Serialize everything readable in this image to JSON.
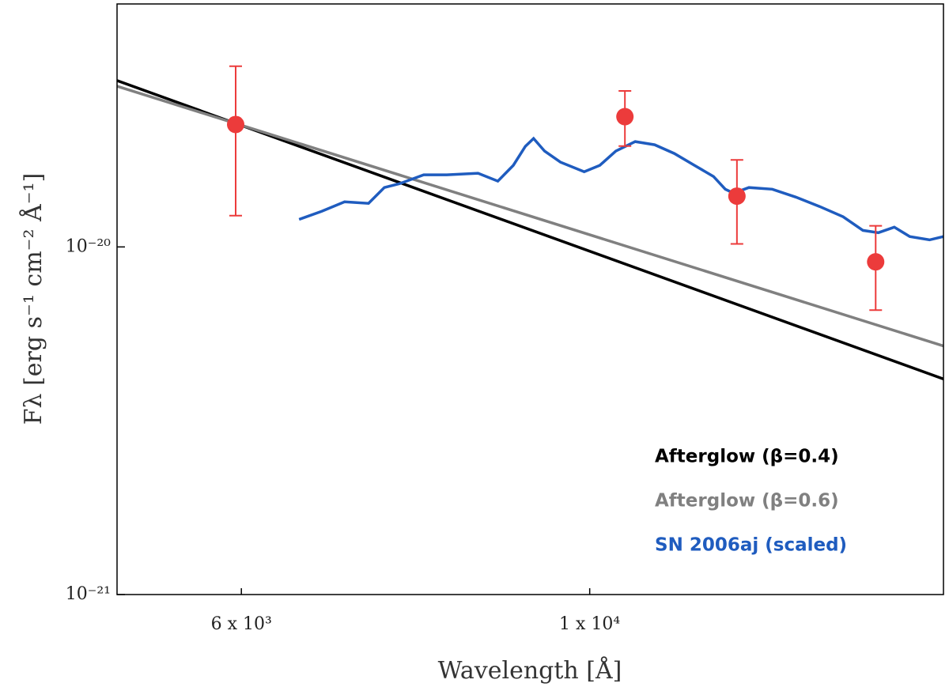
{
  "chart_data": {
    "type": "line",
    "xlabel": "Wavelength [Å]",
    "ylabel": "Fλ [erg s⁻¹ cm⁻² Å⁻¹]",
    "xscale": "log",
    "yscale": "log",
    "xlim": [
      5000,
      16800
    ],
    "ylim": [
      1e-21,
      5e-20
    ],
    "xticks": [
      {
        "value": 6000,
        "label": "6 x 10³"
      },
      {
        "value": 10000,
        "label": "1 x 10⁴"
      }
    ],
    "yticks": [
      {
        "value": 1e-21,
        "label": "10⁻²¹"
      },
      {
        "value": 1e-20,
        "label": "10⁻²⁰"
      }
    ],
    "legend": "lower right",
    "series": [
      {
        "name": "Afterglow (β=0.4)",
        "color": "#000000",
        "x": [
          5000,
          16800
        ],
        "values": [
          3.01e-20,
          4.17e-21
        ]
      },
      {
        "name": "Afterglow (β=0.6)",
        "color": "#808080",
        "x": [
          5000,
          16800
        ],
        "values": [
          2.9e-20,
          5.19e-21
        ]
      },
      {
        "name": "SN 2006aj (scaled)",
        "color": "#1f5cbf",
        "x": [
          6530,
          6750,
          6980,
          7230,
          7400,
          7570,
          7840,
          8110,
          8490,
          8740,
          8940,
          9100,
          9210,
          9360,
          9580,
          9920,
          10150,
          10390,
          10690,
          11000,
          11320,
          11660,
          11990,
          12200,
          12350,
          12630,
          13070,
          13530,
          14010,
          14500,
          14930,
          15270,
          15630,
          15990,
          16460,
          16800
        ],
        "values": [
          1.2e-20,
          1.266e-20,
          1.348e-20,
          1.335e-20,
          1.482e-20,
          1.521e-20,
          1.612e-20,
          1.612e-20,
          1.629e-20,
          1.546e-20,
          1.717e-20,
          1.947e-20,
          2.052e-20,
          1.887e-20,
          1.753e-20,
          1.646e-20,
          1.717e-20,
          1.887e-20,
          2.009e-20,
          1.967e-20,
          1.857e-20,
          1.717e-20,
          1.595e-20,
          1.466e-20,
          1.428e-20,
          1.482e-20,
          1.466e-20,
          1.391e-20,
          1.307e-20,
          1.221e-20,
          1.116e-20,
          1.099e-20,
          1.14e-20,
          1.071e-20,
          1.048e-20,
          1.071e-20
        ]
      },
      {
        "kind": "errorbar",
        "color": "#ec3b3b",
        "x": [
          5950,
          10530,
          12410,
          15210
        ],
        "values": [
          2.25e-20,
          2.37e-20,
          1.4e-20,
          9.06e-21
        ],
        "y_lower": [
          1.23e-20,
          1.95e-20,
          1.02e-20,
          6.58e-21
        ],
        "y_upper": [
          3.31e-20,
          2.81e-20,
          1.78e-20,
          1.15e-20
        ]
      }
    ]
  }
}
